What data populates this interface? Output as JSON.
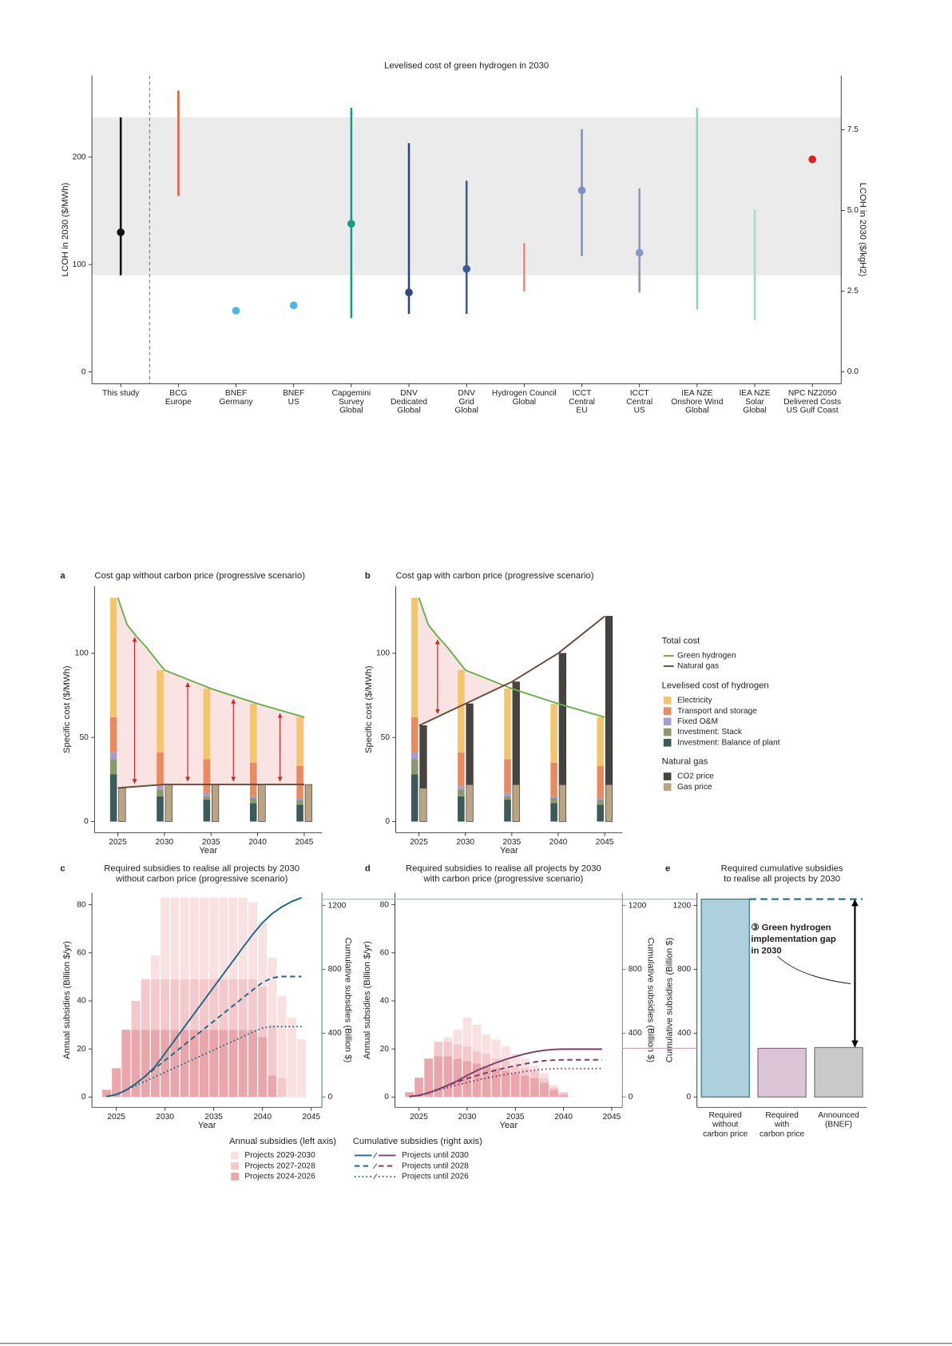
{
  "chart_data": [
    {
      "type": "range",
      "title": "Levelised cost of green hydrogen in 2030",
      "ylabel": "LCOH in 2030 ($/MWh)",
      "y2label": "LCOH in 2030 ($/kgH2)",
      "categories": [
        [
          "This study"
        ],
        [
          "BCG",
          "Europe"
        ],
        [
          "BNEF",
          "Germany"
        ],
        [
          "BNEF",
          "US"
        ],
        [
          "Capgemini",
          "Survey",
          "Global"
        ],
        [
          "DNV",
          "Dedicated",
          "Global"
        ],
        [
          "DNV",
          "Grid",
          "Global"
        ],
        [
          "Hydrogen Council",
          "Global"
        ],
        [
          "ICCT",
          "Central",
          "EU"
        ],
        [
          "ICCT",
          "Central",
          "US"
        ],
        [
          "IEA NZE",
          "Onshore Wind",
          "Global"
        ],
        [
          "IEA NZE",
          "Solar",
          "Global"
        ],
        [
          "NPC NZ2050",
          "Delivered Costs",
          "US Gulf Coast"
        ]
      ],
      "low": [
        90,
        164,
        null,
        null,
        50,
        54,
        54,
        75,
        108,
        74,
        58,
        48,
        null
      ],
      "high": [
        237,
        262,
        null,
        null,
        246,
        213,
        178,
        120,
        226,
        171,
        246,
        151,
        null
      ],
      "point": [
        130,
        null,
        57,
        62,
        138,
        74,
        96,
        null,
        169,
        111,
        null,
        null,
        198
      ],
      "colors": [
        "#111111",
        "#e0603a",
        "#4fb8dc",
        "#4fb8dc",
        "#1a9a84",
        "#2b4a82",
        "#3a5c94",
        "#f08a6a",
        "#7f8fbf",
        "#8a96c4",
        "#8fd3b8",
        "#a3dcc6",
        "#e02020"
      ],
      "shaded_range": [
        90,
        237
      ],
      "ylim": [
        -11,
        276
      ],
      "yticks": [
        0,
        100,
        200
      ],
      "y2lim": [
        -0.37,
        9.18
      ],
      "y2ticks": [
        {
          "value": 0,
          "label": "0.0"
        },
        2.5,
        {
          "value": 5,
          "label": "5.0"
        },
        7.5
      ]
    },
    {
      "type": "cost_gap",
      "panel": "a",
      "title": "Cost gap without carbon price (progressive scenario)",
      "ylabel": "Specific cost ($/MWh)",
      "xlabel": "Year",
      "x": [
        2025,
        2030,
        2035,
        2040,
        2045
      ],
      "hydrogen": [
        {
          "color": "#3d5a5a",
          "values": [
            28,
            15,
            13,
            11,
            10
          ]
        },
        {
          "color": "#8a9a6b",
          "values": [
            9,
            4,
            2,
            3,
            3
          ]
        },
        {
          "color": "#a79bd0",
          "values": [
            4,
            2,
            2,
            1,
            1
          ]
        },
        {
          "color": "#ea8a5e",
          "values": [
            21,
            20,
            20,
            20,
            19
          ]
        },
        {
          "color": "#f5c56c",
          "values": [
            71,
            49,
            42,
            35,
            29
          ]
        }
      ],
      "natural_gas": [
        {
          "color": "#bca382",
          "values": [
            20,
            22,
            22,
            22,
            22
          ]
        }
      ],
      "lines": [
        {
          "color": "#6ab04c",
          "x": [
            2025,
            2026,
            2027,
            2028,
            2029,
            2030,
            2035,
            2040,
            2045
          ],
          "values": [
            133,
            117,
            110,
            104,
            97,
            90,
            79,
            70,
            62
          ]
        },
        {
          "color": "#6b4a3a",
          "x": [
            2025,
            2030,
            2035,
            2040,
            2045
          ],
          "values": [
            20,
            22,
            22,
            22,
            22
          ]
        }
      ],
      "xlim": [
        2022.5,
        2046.9
      ],
      "xticks": [
        2025,
        2030,
        2035,
        2040,
        2045
      ],
      "ylim": [
        -6.6,
        139.8
      ],
      "yticks": [
        0,
        50,
        100
      ]
    },
    {
      "type": "cost_gap",
      "panel": "b",
      "title": "Cost gap with carbon price (progressive scenario)",
      "ylabel": "Specific cost ($/MWh)",
      "xlabel": "Year",
      "x": [
        2025,
        2030,
        2035,
        2040,
        2045
      ],
      "hydrogen": [
        {
          "name": "Investment: Balance of plant",
          "color": "#3d5a5a",
          "values": [
            28,
            15,
            13,
            11,
            10
          ]
        },
        {
          "name": "Investment: Stack",
          "color": "#8a9a6b",
          "values": [
            9,
            4,
            2,
            3,
            3
          ]
        },
        {
          "name": "Fixed O&M",
          "color": "#a79bd0",
          "values": [
            4,
            2,
            2,
            1,
            1
          ]
        },
        {
          "name": "Transport and storage",
          "color": "#ea8a5e",
          "values": [
            21,
            20,
            20,
            20,
            19
          ]
        },
        {
          "name": "Electricity",
          "color": "#f5c56c",
          "values": [
            71,
            49,
            42,
            35,
            29
          ]
        }
      ],
      "natural_gas": [
        {
          "name": "Gas price",
          "color": "#bca382",
          "values": [
            20,
            22,
            22,
            22,
            22
          ]
        },
        {
          "name": "CO2 price",
          "color": "#474440",
          "values": [
            37,
            48,
            61,
            78,
            100
          ]
        }
      ],
      "lines": [
        {
          "name": "Green hydrogen",
          "color": "#6ab04c",
          "x": [
            2025,
            2026,
            2027,
            2028,
            2029,
            2030,
            2035,
            2040,
            2045
          ],
          "values": [
            133,
            117,
            110,
            104,
            97,
            90,
            79,
            70,
            62
          ]
        },
        {
          "name": "Natural gas",
          "color": "#6b4a3a",
          "x": [
            2025,
            2030,
            2035,
            2040,
            2045
          ],
          "values": [
            57,
            70,
            83,
            100,
            122
          ]
        }
      ],
      "legend_title_lines": "Total cost",
      "legend_title_hydrogen": "Levelised cost of hydrogen",
      "legend_title_gas": "Natural gas",
      "xlim": [
        2022.5,
        2046.9
      ],
      "xticks": [
        2025,
        2030,
        2035,
        2040,
        2045
      ],
      "ylim": [
        -6.6,
        139.8
      ],
      "yticks": [
        0,
        50,
        100
      ]
    },
    {
      "type": "subsidies",
      "panel": "c",
      "title": [
        "Required subsidies to realise all projects by 2030",
        "without carbon price (progressive scenario)"
      ],
      "ylabel": "Annual subsidies (Billion $/yr)",
      "y2label": "Cumulative subsidies (Billion $)",
      "xlabel": "Year",
      "x": [
        2024,
        2025,
        2026,
        2027,
        2028,
        2029,
        2030,
        2031,
        2032,
        2033,
        2034,
        2035,
        2036,
        2037,
        2038,
        2039,
        2040,
        2041,
        2042,
        2043,
        2044
      ],
      "bars": [
        {
          "name": "Projects 2024-2026",
          "color": "#eaa7ab",
          "values": [
            3,
            12,
            28,
            28,
            28,
            28,
            28,
            28,
            28,
            28,
            28,
            28,
            28,
            28,
            28,
            28,
            25,
            9,
            0,
            0,
            0
          ]
        },
        {
          "name": "Projects 2027-2028",
          "color": "#f3c9cb",
          "values": [
            0,
            0,
            0,
            12,
            21,
            21,
            21,
            21,
            21,
            21,
            21,
            21,
            21,
            21,
            21,
            21,
            21,
            21,
            8,
            0,
            0
          ]
        },
        {
          "name": "Projects 2029-2030",
          "color": "#f9e1e2",
          "values": [
            0,
            0,
            0,
            0,
            0,
            10,
            34,
            34,
            34,
            34,
            34,
            34,
            34,
            34,
            34,
            32,
            27,
            28,
            34,
            33,
            24
          ]
        }
      ],
      "lines": [
        {
          "name": "Projects until 2030",
          "color": "#1b6a8a",
          "dash": "solid",
          "values": [
            3,
            15,
            43,
            83,
            132,
            191,
            274,
            357,
            440,
            523,
            606,
            689,
            772,
            855,
            938,
            1019,
            1092,
            1150,
            1192,
            1225,
            1249
          ]
        },
        {
          "name": "Projects until 2028",
          "color": "#1b6a8a",
          "dash": "dashed",
          "values": [
            3,
            15,
            43,
            83,
            132,
            181,
            230,
            279,
            328,
            377,
            426,
            475,
            524,
            573,
            622,
            671,
            717,
            747,
            755,
            755,
            755
          ]
        },
        {
          "name": "Projects until 2026",
          "color": "#1b6a8a",
          "dash": "dotted",
          "values": [
            3,
            15,
            43,
            71,
            99,
            127,
            155,
            183,
            211,
            239,
            267,
            295,
            323,
            351,
            379,
            407,
            432,
            441,
            441,
            441,
            441
          ]
        }
      ],
      "bars_legend_title": "Annual subsidies (left axis)",
      "lines_legend_title": "Cumulative subsidies (right axis)",
      "xlim": [
        2022.5,
        2046.1
      ],
      "xticks": [
        2025,
        2030,
        2035,
        2040,
        2045
      ],
      "ylim": [
        -4.3,
        85
      ],
      "yticks": [
        0,
        20,
        40,
        60,
        80
      ],
      "y2lim": [
        -65,
        1280
      ],
      "y2ticks": [
        0,
        400,
        800,
        1200
      ]
    },
    {
      "type": "subsidies",
      "panel": "d",
      "title": [
        "Required subsidies to realise all projects by 2030",
        "with carbon price (progressive scenario)"
      ],
      "ylabel": "Annual subsidies (Billion $/yr)",
      "y2label": "Cumulative subsidies (Billion $)",
      "xlabel": "Year",
      "x": [
        2024,
        2025,
        2026,
        2027,
        2028,
        2029,
        2030,
        2031,
        2032,
        2033,
        2034,
        2035,
        2036,
        2037,
        2038,
        2039,
        2040,
        2041,
        2042,
        2043,
        2044
      ],
      "bars": [
        {
          "color": "#eaa7ab",
          "values": [
            2,
            8,
            16,
            17,
            17,
            16,
            15,
            14,
            13,
            12,
            11,
            10,
            9,
            8,
            6,
            3,
            1,
            0,
            0,
            0,
            0
          ]
        },
        {
          "color": "#f3c9cb",
          "values": [
            0,
            0,
            0,
            6,
            6,
            6,
            6,
            5,
            5,
            4,
            4,
            3,
            3,
            3,
            2,
            1,
            1,
            0,
            0,
            0,
            0
          ]
        },
        {
          "color": "#f9e1e2",
          "values": [
            0,
            0,
            0,
            0,
            2,
            6,
            12,
            11,
            8,
            8,
            6,
            5,
            4,
            2,
            2,
            1,
            0,
            0,
            0,
            0,
            0
          ]
        }
      ],
      "lines": [
        {
          "color": "#7b3f6e",
          "dash": "solid",
          "values": [
            2,
            10,
            26,
            49,
            74,
            102,
            135,
            165,
            191,
            215,
            236,
            254,
            270,
            283,
            293,
            298,
            300,
            300,
            300,
            300,
            300
          ]
        },
        {
          "color": "#7b3f6e",
          "dash": "dashed",
          "values": [
            2,
            10,
            26,
            49,
            72,
            94,
            115,
            134,
            152,
            168,
            183,
            196,
            208,
            219,
            227,
            231,
            233,
            233,
            233,
            233,
            233
          ]
        },
        {
          "color": "#7b3f6e",
          "dash": "dotted",
          "values": [
            2,
            10,
            26,
            43,
            60,
            76,
            91,
            105,
            118,
            130,
            141,
            151,
            160,
            168,
            174,
            177,
            178,
            178,
            178,
            178,
            178
          ]
        }
      ],
      "xlim": [
        2022.5,
        2046.1
      ],
      "xticks": [
        2025,
        2030,
        2035,
        2040,
        2045
      ],
      "ylim": [
        -4.3,
        85
      ],
      "yticks": [
        0,
        20,
        40,
        60,
        80
      ],
      "y2lim": [
        -65,
        1280
      ],
      "y2ticks": [
        0,
        400,
        800,
        1200
      ]
    },
    {
      "type": "bar",
      "panel": "e",
      "title": [
        "Required cumulative subsidies",
        "to realise all projects by 2030"
      ],
      "ylabel": "Cumulative subsidies (Billion $)",
      "categories": [
        [
          "Required",
          "without",
          "carbon price"
        ],
        [
          "Required",
          "with",
          "carbon price"
        ],
        [
          "Announced",
          "(BNEF)"
        ]
      ],
      "values": [
        1240,
        305,
        310
      ],
      "colors": [
        "#aed0dc",
        "#dcc5d6",
        "#c9c9c9"
      ],
      "edge_colors": [
        "#1b6a8a",
        "#8a5a7e",
        "#6b6b6b"
      ],
      "annotation": [
        "③ Green hydrogen",
        "implementation gap",
        "in 2030"
      ],
      "ylim": [
        -65,
        1280
      ],
      "yticks": [
        0,
        400,
        800,
        1200
      ]
    }
  ]
}
